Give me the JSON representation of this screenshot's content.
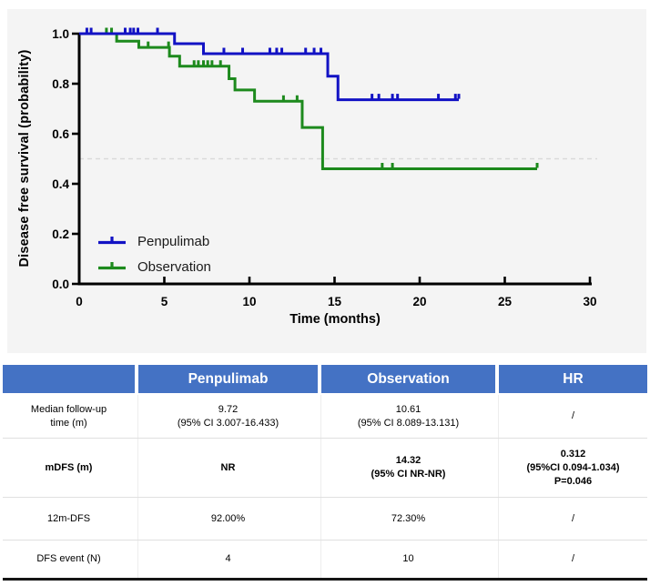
{
  "figure": {
    "panel_bg": "#f4f4f4",
    "accent_header_bg": "#4472C4"
  },
  "chart": {
    "y_axis": {
      "label": "Disease free survival (probability)"
    },
    "x_axis": {
      "label": "Time (months)"
    },
    "legend": [
      {
        "label": "Penpulimab",
        "color": "#1212c4"
      },
      {
        "label": "Observation",
        "color": "#1d8a1d"
      }
    ]
  },
  "chart_data": {
    "type": "line",
    "subtype": "kaplan-meier-step",
    "title": "",
    "xlabel": "Time (months)",
    "ylabel": "Disease free survival (probability)",
    "xlim": [
      0,
      30
    ],
    "ylim": [
      0.0,
      1.0
    ],
    "x_ticks": [
      [
        "0",
        0
      ],
      [
        "5",
        5
      ],
      [
        "10",
        10
      ],
      [
        "15",
        15
      ],
      [
        "20",
        20
      ],
      [
        "25",
        25
      ],
      [
        "30",
        30
      ]
    ],
    "y_ticks": [
      [
        "1.0",
        1.0
      ],
      [
        "0.8",
        0.8
      ],
      [
        "0.6",
        0.6
      ],
      [
        "0.4",
        0.4
      ],
      [
        "0.2",
        0.2
      ],
      [
        "0.0",
        0.0
      ]
    ],
    "reference_line_y": 0.5,
    "grid": false,
    "legend_position": "lower-left",
    "series": [
      {
        "name": "Penpulimab",
        "color": "#1212c4",
        "steps": [
          [
            0,
            1.0
          ],
          [
            5.6,
            0.96
          ],
          [
            7.3,
            0.92
          ],
          [
            14.6,
            0.83
          ],
          [
            15.2,
            0.736
          ],
          [
            22.3,
            0.736
          ]
        ],
        "censor_marks": [
          [
            0.45,
            1.0
          ],
          [
            0.7,
            1.0
          ],
          [
            2.7,
            1.0
          ],
          [
            3.0,
            1.0
          ],
          [
            3.2,
            1.0
          ],
          [
            3.45,
            1.0
          ],
          [
            4.6,
            1.0
          ],
          [
            8.5,
            0.92
          ],
          [
            9.6,
            0.92
          ],
          [
            11.2,
            0.92
          ],
          [
            11.6,
            0.92
          ],
          [
            11.9,
            0.92
          ],
          [
            13.3,
            0.92
          ],
          [
            13.8,
            0.92
          ],
          [
            14.2,
            0.92
          ],
          [
            17.2,
            0.736
          ],
          [
            17.6,
            0.736
          ],
          [
            18.4,
            0.736
          ],
          [
            18.7,
            0.736
          ],
          [
            21.1,
            0.736
          ],
          [
            22.1,
            0.736
          ],
          [
            22.3,
            0.736
          ]
        ]
      },
      {
        "name": "Observation",
        "color": "#1d8a1d",
        "steps": [
          [
            0,
            1.0
          ],
          [
            2.2,
            0.97
          ],
          [
            3.5,
            0.945
          ],
          [
            5.3,
            0.91
          ],
          [
            5.9,
            0.87
          ],
          [
            8.8,
            0.82
          ],
          [
            9.15,
            0.775
          ],
          [
            10.3,
            0.73
          ],
          [
            13.1,
            0.625
          ],
          [
            14.3,
            0.46
          ],
          [
            26.9,
            0.46
          ]
        ],
        "censor_marks": [
          [
            1.6,
            1.0
          ],
          [
            1.9,
            1.0
          ],
          [
            4.05,
            0.945
          ],
          [
            5.25,
            0.945
          ],
          [
            6.75,
            0.87
          ],
          [
            7.0,
            0.87
          ],
          [
            7.3,
            0.87
          ],
          [
            7.55,
            0.87
          ],
          [
            7.8,
            0.87
          ],
          [
            8.3,
            0.87
          ],
          [
            12.0,
            0.73
          ],
          [
            12.8,
            0.73
          ],
          [
            17.8,
            0.46
          ],
          [
            18.4,
            0.46
          ],
          [
            26.9,
            0.46
          ]
        ]
      }
    ]
  },
  "table": {
    "header": [
      "",
      "Penpulimab",
      "Observation",
      "HR"
    ],
    "rows": [
      {
        "label": "Median follow-up\ntime (m)",
        "penpulimab": "9.72\n(95% CI 3.007-16.433)",
        "observation": "10.61\n(95% CI 8.089-13.131)",
        "hr": "/"
      },
      {
        "label": "mDFS (m)",
        "penpulimab": "NR",
        "observation": "14.32\n(95% CI NR-NR)",
        "hr": "0.312\n(95%CI 0.094-1.034)\nP=0.046"
      },
      {
        "label": "12m-DFS",
        "penpulimab": "92.00%",
        "observation": "72.30%",
        "hr": "/"
      },
      {
        "label": "DFS event (N)",
        "penpulimab": "4",
        "observation": "10",
        "hr": "/"
      }
    ]
  }
}
